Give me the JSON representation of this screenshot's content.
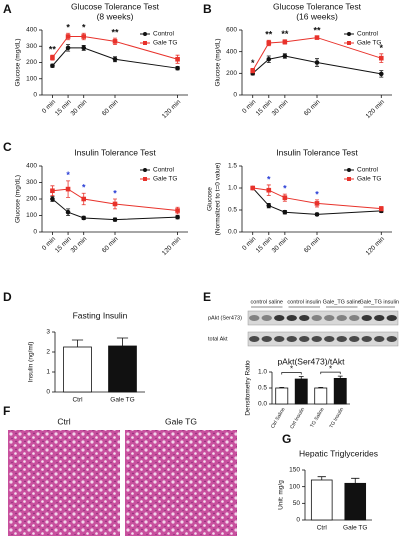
{
  "chart_data": [
    {
      "type": "line",
      "panel": "A",
      "title": "Glucose Tolerance Test",
      "subtitle": "(8 weeks)",
      "ylabel": [
        "Glucose (mg/dL)"
      ],
      "x": [
        0,
        15,
        30,
        60,
        120
      ],
      "xlim": [
        -10,
        130
      ],
      "xticks": [
        {
          "value": 0,
          "label": "0 min"
        },
        {
          "value": 15,
          "label": "15 min"
        },
        {
          "value": 30,
          "label": "30 min"
        },
        {
          "value": 60,
          "label": "60 min"
        },
        {
          "value": 120,
          "label": "120 min"
        }
      ],
      "ylim": [
        0,
        400
      ],
      "yticks": [
        0,
        100,
        200,
        300,
        400
      ],
      "legend": "upper right",
      "series": [
        {
          "name": "Control",
          "color": "#111111",
          "marker": "circle",
          "values": [
            180,
            290,
            290,
            220,
            165
          ],
          "errors": [
            10,
            20,
            15,
            15,
            10
          ]
        },
        {
          "name": "Gale TG",
          "color": "#e8322b",
          "marker": "square",
          "values": [
            230,
            360,
            360,
            330,
            220
          ],
          "errors": [
            15,
            20,
            20,
            20,
            25
          ]
        }
      ],
      "annotations": [
        {
          "x": 0,
          "text": "**"
        },
        {
          "x": 15,
          "text": "*"
        },
        {
          "x": 30,
          "text": "*"
        },
        {
          "x": 60,
          "text": "**"
        }
      ],
      "annotation_color": "#111111"
    },
    {
      "type": "line",
      "panel": "B",
      "title": "Glucose Tolerance Test",
      "subtitle": "(16 weeks)",
      "ylabel": [
        "Glucose (mg/dL)"
      ],
      "x": [
        0,
        15,
        30,
        60,
        120
      ],
      "xlim": [
        -10,
        130
      ],
      "xticks": [
        {
          "value": 0,
          "label": "0 min"
        },
        {
          "value": 15,
          "label": "15 min"
        },
        {
          "value": 30,
          "label": "30 min"
        },
        {
          "value": 60,
          "label": "60 min"
        },
        {
          "value": 120,
          "label": "120 min"
        }
      ],
      "ylim": [
        0,
        600
      ],
      "yticks": [
        0,
        200,
        400,
        600
      ],
      "legend": "upper right",
      "series": [
        {
          "name": "Control",
          "color": "#111111",
          "marker": "circle",
          "values": [
            200,
            330,
            360,
            300,
            195
          ],
          "errors": [
            15,
            30,
            20,
            35,
            30
          ]
        },
        {
          "name": "Gale TG",
          "color": "#e8322b",
          "marker": "square",
          "values": [
            225,
            480,
            490,
            530,
            340
          ],
          "errors": [
            20,
            25,
            20,
            15,
            40
          ]
        }
      ],
      "annotations": [
        {
          "x": 0,
          "text": "*"
        },
        {
          "x": 15,
          "text": "**"
        },
        {
          "x": 30,
          "text": "**"
        },
        {
          "x": 60,
          "text": "**"
        },
        {
          "x": 120,
          "text": "*"
        }
      ],
      "annotation_color": "#111111"
    },
    {
      "type": "line",
      "panel": "C",
      "title": "Insulin Tolerance Test",
      "ylabel": [
        "Glucose (mg/dL)"
      ],
      "x": [
        0,
        15,
        30,
        60,
        120
      ],
      "xlim": [
        -10,
        130
      ],
      "xticks": [
        {
          "value": 0,
          "label": "0 min"
        },
        {
          "value": 15,
          "label": "15 min"
        },
        {
          "value": 30,
          "label": "30 min"
        },
        {
          "value": 60,
          "label": "60 min"
        },
        {
          "value": 120,
          "label": "120 min"
        }
      ],
      "ylim": [
        0,
        400
      ],
      "yticks": [
        0,
        100,
        200,
        300,
        400
      ],
      "legend": "upper right",
      "series": [
        {
          "name": "Control",
          "color": "#111111",
          "marker": "circle",
          "values": [
            200,
            120,
            85,
            75,
            90
          ],
          "errors": [
            15,
            20,
            10,
            10,
            10
          ]
        },
        {
          "name": "Gale TG",
          "color": "#e8322b",
          "marker": "square",
          "values": [
            250,
            260,
            200,
            170,
            130
          ],
          "errors": [
            30,
            50,
            35,
            30,
            20
          ]
        }
      ],
      "annotations": [
        {
          "x": 15,
          "text": "*"
        },
        {
          "x": 30,
          "text": "*"
        },
        {
          "x": 60,
          "text": "*"
        }
      ],
      "annotation_color": "#2b3fd6"
    },
    {
      "type": "line",
      "title": "Insulin Tolerance Test",
      "ylabel": [
        "Glucose",
        "(Normalized to t=0 value)"
      ],
      "x": [
        0,
        15,
        30,
        60,
        120
      ],
      "xlim": [
        -10,
        130
      ],
      "xticks": [
        {
          "value": 0,
          "label": "0 min"
        },
        {
          "value": 15,
          "label": "15 min"
        },
        {
          "value": 30,
          "label": "30 min"
        },
        {
          "value": 60,
          "label": "60 min"
        },
        {
          "value": 120,
          "label": "120 min"
        }
      ],
      "ylim": [
        0,
        1.5
      ],
      "yticks": [
        {
          "value": 0,
          "label": "0.0"
        },
        {
          "value": 0.5,
          "label": "0.5"
        },
        {
          "value": 1,
          "label": "1.0"
        },
        {
          "value": 1.5,
          "label": "1.5"
        }
      ],
      "legend": "upper right",
      "series": [
        {
          "name": "Control",
          "color": "#111111",
          "marker": "circle",
          "values": [
            1.0,
            0.6,
            0.45,
            0.4,
            0.48
          ],
          "errors": [
            0,
            0.05,
            0.04,
            0.03,
            0.04
          ]
        },
        {
          "name": "Gale TG",
          "color": "#e8322b",
          "marker": "square",
          "values": [
            1.0,
            0.95,
            0.78,
            0.65,
            0.53
          ],
          "errors": [
            0,
            0.12,
            0.08,
            0.08,
            0.05
          ]
        }
      ],
      "annotations": [
        {
          "x": 15,
          "text": "*"
        },
        {
          "x": 30,
          "text": "*"
        },
        {
          "x": 60,
          "text": "*"
        }
      ],
      "annotation_color": "#2b3fd6"
    },
    {
      "type": "bar",
      "panel": "D",
      "title": "Fasting Insulin",
      "ylabel": [
        "Insulin (ng/ml)"
      ],
      "categories": [
        "Ctrl",
        "Gale TG"
      ],
      "values": [
        2.25,
        2.3
      ],
      "errors": [
        0.35,
        0.4
      ],
      "colors": [
        "#ffffff",
        "#111111"
      ],
      "ylim": [
        0,
        3
      ],
      "yticks": [
        0,
        1,
        2,
        3
      ]
    },
    {
      "type": "bar",
      "panel": "E",
      "title": "pAkt(Ser473)/tAkt",
      "ylabel": [
        "Densitometry Ratio"
      ],
      "blot_lanes": [
        "control saline",
        "control insulin",
        "Gale_TG saline",
        "Gale_TG insulin"
      ],
      "blot_rows": [
        "pAkt (Ser473)",
        "total Akt"
      ],
      "categories": [
        "Ctrl Saline",
        "Ctrl Insulin",
        "TG Saline",
        "TG Insulin"
      ],
      "values": [
        0.5,
        0.78,
        0.5,
        0.8
      ],
      "errors": [
        0.02,
        0.08,
        0.02,
        0.07
      ],
      "colors": [
        "#ffffff",
        "#111111",
        "#ffffff",
        "#111111"
      ],
      "ylim": [
        0,
        1
      ],
      "yticks": [
        {
          "value": 0,
          "label": "0.0"
        },
        {
          "value": 0.5,
          "label": "0.5"
        },
        {
          "value": 1,
          "label": "1.0"
        }
      ],
      "annotations": [
        {
          "text": "*",
          "between": [
            0,
            1
          ]
        },
        {
          "text": "*",
          "between": [
            2,
            3
          ]
        }
      ]
    },
    {
      "type": "bar",
      "panel": "G",
      "title": "Hepatic Triglycerides",
      "ylabel": [
        "Unit: mg/g"
      ],
      "categories": [
        "Ctrl",
        "Gale TG"
      ],
      "values": [
        120,
        110
      ],
      "errors": [
        10,
        15
      ],
      "colors": [
        "#ffffff",
        "#111111"
      ],
      "ylim": [
        0,
        150
      ],
      "yticks": [
        0,
        50,
        100,
        150
      ]
    }
  ],
  "histology": {
    "panel": "F",
    "images": [
      "Ctrl",
      "Gale TG"
    ]
  }
}
